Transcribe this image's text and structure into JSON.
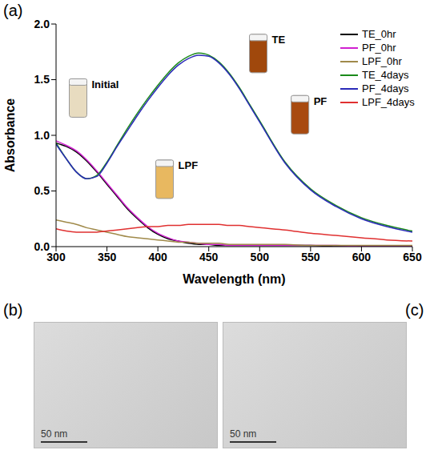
{
  "chart_data": {
    "type": "line",
    "panel": "(a)",
    "x_label": "Wavelength (nm)",
    "y_label": "Absorbance",
    "x": [
      300,
      310,
      320,
      330,
      340,
      350,
      360,
      370,
      380,
      390,
      400,
      410,
      420,
      430,
      440,
      450,
      460,
      470,
      480,
      490,
      500,
      525,
      550,
      575,
      600,
      625,
      650
    ],
    "series": [
      {
        "name": "TE_0hr",
        "color": "#000000",
        "values": [
          0.93,
          0.9,
          0.85,
          0.77,
          0.67,
          0.56,
          0.45,
          0.34,
          0.25,
          0.17,
          0.11,
          0.07,
          0.05,
          0.03,
          0.02,
          0.02,
          0.01,
          0.01,
          0.01,
          0.01,
          0.01,
          0.01,
          0.01,
          0,
          0,
          0,
          0
        ]
      },
      {
        "name": "PF_0hr",
        "color": "#d020d0",
        "values": [
          0.95,
          0.91,
          0.86,
          0.78,
          0.68,
          0.57,
          0.46,
          0.35,
          0.26,
          0.18,
          0.12,
          0.08,
          0.05,
          0.04,
          0.03,
          0.02,
          0.02,
          0.01,
          0.01,
          0.01,
          0.01,
          0.01,
          0.01,
          0.01,
          0,
          0,
          0
        ]
      },
      {
        "name": "LPF_0hr",
        "color": "#a08a4a",
        "values": [
          0.24,
          0.22,
          0.2,
          0.17,
          0.15,
          0.13,
          0.11,
          0.09,
          0.08,
          0.07,
          0.06,
          0.05,
          0.04,
          0.04,
          0.03,
          0.03,
          0.03,
          0.02,
          0.02,
          0.02,
          0.02,
          0.02,
          0.01,
          0.01,
          0.01,
          0.01,
          0.01
        ]
      },
      {
        "name": "TE_4days",
        "color": "#1a8a1a",
        "values": [
          0.93,
          0.79,
          0.67,
          0.61,
          0.64,
          0.76,
          0.91,
          1.06,
          1.2,
          1.33,
          1.45,
          1.56,
          1.65,
          1.71,
          1.74,
          1.72,
          1.66,
          1.56,
          1.43,
          1.28,
          1.13,
          0.76,
          0.52,
          0.37,
          0.26,
          0.19,
          0.14
        ]
      },
      {
        "name": "PF_4days",
        "color": "#2a2ab8",
        "values": [
          0.92,
          0.79,
          0.67,
          0.61,
          0.63,
          0.75,
          0.9,
          1.04,
          1.18,
          1.31,
          1.43,
          1.54,
          1.63,
          1.69,
          1.72,
          1.71,
          1.65,
          1.55,
          1.42,
          1.27,
          1.12,
          0.75,
          0.51,
          0.36,
          0.25,
          0.18,
          0.13
        ]
      },
      {
        "name": "LPF_4days",
        "color": "#e03030",
        "values": [
          0.16,
          0.14,
          0.13,
          0.13,
          0.13,
          0.14,
          0.15,
          0.16,
          0.17,
          0.18,
          0.18,
          0.19,
          0.19,
          0.2,
          0.2,
          0.2,
          0.2,
          0.19,
          0.19,
          0.18,
          0.17,
          0.15,
          0.12,
          0.1,
          0.08,
          0.06,
          0.05
        ]
      }
    ],
    "xlim": [
      300,
      650
    ],
    "xticks": [
      300,
      350,
      400,
      450,
      500,
      550,
      600,
      650
    ],
    "ylim": [
      0,
      2
    ],
    "yticks": [
      {
        "value": 0,
        "label": "0.0"
      },
      {
        "value": 0.5,
        "label": "0.5"
      },
      {
        "value": 1,
        "label": "1.0"
      },
      {
        "value": 1.5,
        "label": "1.5"
      },
      {
        "value": 2,
        "label": "2.0"
      }
    ],
    "legend": "upper right",
    "annotations": [
      {
        "text": "Initial",
        "x": 335,
        "y": 1.45
      },
      {
        "text": "TE",
        "x": 512,
        "y": 1.85
      },
      {
        "text": "PF",
        "x": 553,
        "y": 1.3
      },
      {
        "text": "LPF",
        "x": 420,
        "y": 0.72
      }
    ]
  },
  "images": [
    {
      "panel": "(b)",
      "scale_bar": "50 nm"
    },
    {
      "panel": "(c)",
      "scale_bar": "50 nm"
    }
  ]
}
